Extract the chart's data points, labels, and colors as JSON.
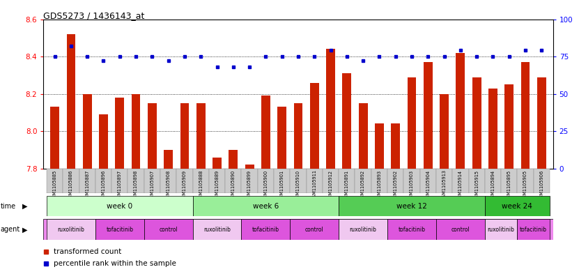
{
  "title": "GDS5273 / 1436143_at",
  "ylim_left": [
    7.8,
    8.6
  ],
  "ylim_right": [
    0,
    100
  ],
  "yticks_left": [
    7.8,
    8.0,
    8.2,
    8.4,
    8.6
  ],
  "yticks_right": [
    0,
    25,
    50,
    75,
    100
  ],
  "sample_ids": [
    "GSM1105885",
    "GSM1105886",
    "GSM1105887",
    "GSM1105896",
    "GSM1105897",
    "GSM1105898",
    "GSM1105907",
    "GSM1105908",
    "GSM1105909",
    "GSM1105888",
    "GSM1105889",
    "GSM1105890",
    "GSM1105899",
    "GSM1105900",
    "GSM1105901",
    "GSM1105910",
    "GSM1105911",
    "GSM1105912",
    "GSM1105891",
    "GSM1105892",
    "GSM1105893",
    "GSM1105902",
    "GSM1105903",
    "GSM1105904",
    "GSM1105913",
    "GSM1105914",
    "GSM1105915",
    "GSM1105894",
    "GSM1105895",
    "GSM1105905",
    "GSM1105906"
  ],
  "bar_values": [
    8.13,
    8.52,
    8.2,
    8.09,
    8.18,
    8.2,
    8.15,
    7.9,
    8.15,
    8.15,
    7.86,
    7.9,
    7.82,
    8.19,
    8.13,
    8.15,
    8.26,
    8.44,
    8.31,
    8.15,
    8.04,
    8.04,
    8.29,
    8.37,
    8.2,
    8.42,
    8.29,
    8.23,
    8.25,
    8.37,
    8.29
  ],
  "percentile_values": [
    75,
    82,
    75,
    72,
    75,
    75,
    75,
    72,
    75,
    75,
    68,
    68,
    68,
    75,
    75,
    75,
    75,
    79,
    75,
    72,
    75,
    75,
    75,
    75,
    75,
    79,
    75,
    75,
    75,
    79,
    79
  ],
  "bar_color": "#cc2200",
  "dot_color": "#0000cc",
  "background_color": "#ffffff",
  "plot_bg_color": "#ffffff",
  "gridline_color": "#000000",
  "tick_bg_color": "#d0d0d0",
  "time_groups": [
    {
      "label": "week 0",
      "start": 0,
      "end": 8,
      "color": "#ccffcc"
    },
    {
      "label": "week 6",
      "start": 9,
      "end": 17,
      "color": "#99ee99"
    },
    {
      "label": "week 12",
      "start": 18,
      "end": 26,
      "color": "#55cc55"
    },
    {
      "label": "week 24",
      "start": 27,
      "end": 30,
      "color": "#33bb33"
    }
  ],
  "agent_groups": [
    {
      "label": "ruxolitinib",
      "start": 0,
      "end": 2,
      "color": "#f0c8f0"
    },
    {
      "label": "tofacitinib",
      "start": 3,
      "end": 5,
      "color": "#dd55dd"
    },
    {
      "label": "control",
      "start": 6,
      "end": 8,
      "color": "#dd55dd"
    },
    {
      "label": "ruxolitinib",
      "start": 9,
      "end": 11,
      "color": "#f0c8f0"
    },
    {
      "label": "tofacitinib",
      "start": 12,
      "end": 14,
      "color": "#dd55dd"
    },
    {
      "label": "control",
      "start": 15,
      "end": 17,
      "color": "#dd55dd"
    },
    {
      "label": "ruxolitinib",
      "start": 18,
      "end": 20,
      "color": "#f0c8f0"
    },
    {
      "label": "tofacitinib",
      "start": 21,
      "end": 23,
      "color": "#dd55dd"
    },
    {
      "label": "control",
      "start": 24,
      "end": 26,
      "color": "#dd55dd"
    },
    {
      "label": "ruxolitinib",
      "start": 27,
      "end": 28,
      "color": "#f0c8f0"
    },
    {
      "label": "tofacitinib",
      "start": 29,
      "end": 30,
      "color": "#dd55dd"
    }
  ],
  "fig_width": 8.31,
  "fig_height": 3.93,
  "dpi": 100
}
